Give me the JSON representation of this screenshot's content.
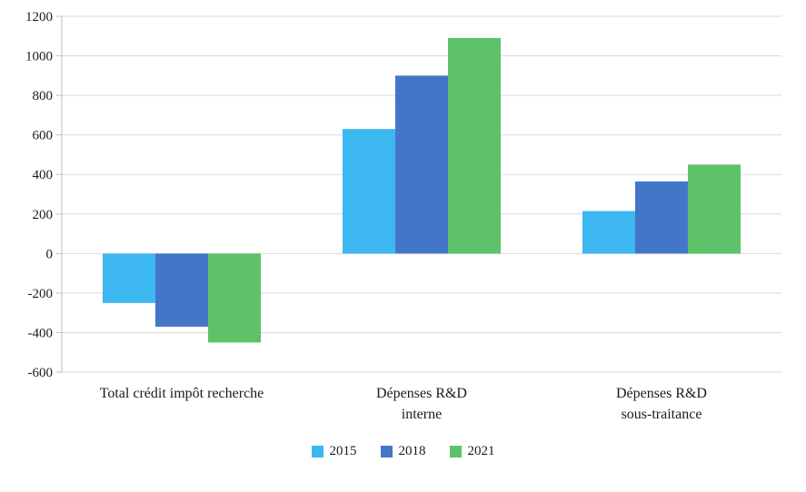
{
  "chart_data": {
    "type": "bar",
    "title": "",
    "xlabel": "",
    "ylabel": "",
    "categories": [
      "Total crédit impôt recherche",
      "Dépenses R&D\ninterne",
      "Dépenses R&D\nsous-traitance"
    ],
    "series": [
      {
        "name": "2015",
        "color": "#3DB7F0",
        "values": [
          -250,
          630,
          215
        ]
      },
      {
        "name": "2018",
        "color": "#4376C8",
        "values": [
          -370,
          900,
          365
        ]
      },
      {
        "name": "2021",
        "color": "#5DC268",
        "values": [
          -450,
          1090,
          450
        ]
      }
    ],
    "ylim": [
      -600,
      1200
    ],
    "ytick_step": 200,
    "ytick_labels": [
      "-600",
      "-400",
      "-200",
      "0",
      "200",
      "400",
      "600",
      "800",
      "1000",
      "1200"
    ],
    "grid": true,
    "legend_position": "bottom"
  },
  "colors": {
    "background": "#FFFFFF",
    "grid": "#D9D9D9",
    "axis": "#BFBFBF",
    "text": "#1a1a1a"
  }
}
